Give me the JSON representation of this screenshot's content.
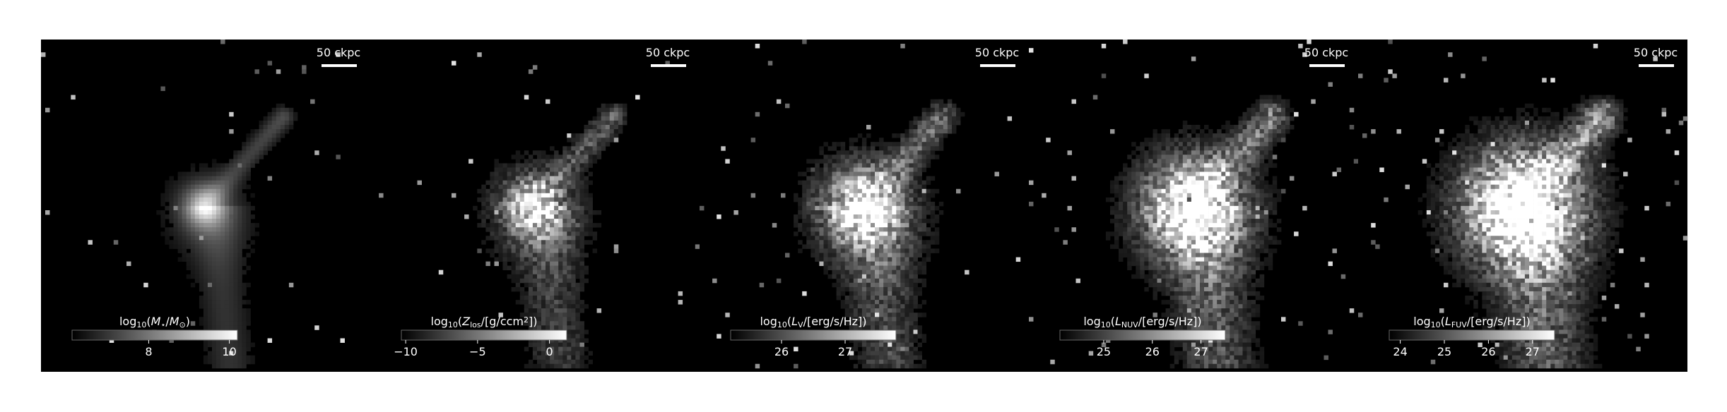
{
  "chart_data": [
    {
      "type": "image",
      "scalebar_label": "50 ckpc",
      "colorbar_label": [
        {
          "text": "log"
        },
        {
          "text": "10",
          "sub": true
        },
        {
          "text": "("
        },
        {
          "text": "M",
          "italic": true
        },
        {
          "text": "⋆",
          "sub": true
        },
        {
          "text": "/"
        },
        {
          "text": "M",
          "italic": true
        },
        {
          "text": "⊙",
          "sub": true
        },
        {
          "text": ")"
        }
      ],
      "clim": [
        6.1,
        10.2
      ],
      "cticks": [
        8,
        10
      ]
    },
    {
      "type": "image",
      "scalebar_label": "50 ckpc",
      "colorbar_label": [
        {
          "text": "log"
        },
        {
          "text": "10",
          "sub": true
        },
        {
          "text": "("
        },
        {
          "text": "Z",
          "italic": true
        },
        {
          "text": "los",
          "sub": true
        },
        {
          "text": "/[g/ccm"
        },
        {
          "text": "2",
          "sup": true
        },
        {
          "text": "])"
        }
      ],
      "clim": [
        -10.3,
        1.2
      ],
      "cticks": [
        {
          "value": -10,
          "label": "−10"
        },
        {
          "value": -5,
          "label": "−5"
        },
        0
      ]
    },
    {
      "type": "image",
      "scalebar_label": "50 ckpc",
      "colorbar_label": [
        {
          "text": "log"
        },
        {
          "text": "10",
          "sub": true
        },
        {
          "text": "("
        },
        {
          "text": "L",
          "italic": true
        },
        {
          "text": "V",
          "sub": true
        },
        {
          "text": "/[erg/s/Hz])"
        }
      ],
      "clim": [
        25.2,
        27.8
      ],
      "cticks": [
        26,
        27
      ]
    },
    {
      "type": "image",
      "scalebar_label": "50 ckpc",
      "colorbar_label": [
        {
          "text": "log"
        },
        {
          "text": "10",
          "sub": true
        },
        {
          "text": "("
        },
        {
          "text": "L",
          "italic": true
        },
        {
          "text": "NUV",
          "sub": true
        },
        {
          "text": "/[erg/s/Hz])"
        }
      ],
      "clim": [
        24.1,
        27.5
      ],
      "cticks": [
        25,
        26,
        27
      ]
    },
    {
      "type": "image",
      "scalebar_label": "50 ckpc",
      "colorbar_label": [
        {
          "text": "log"
        },
        {
          "text": "10",
          "sub": true
        },
        {
          "text": "("
        },
        {
          "text": "L",
          "italic": true
        },
        {
          "text": "FUV",
          "sub": true
        },
        {
          "text": "/[erg/s/Hz])"
        }
      ],
      "clim": [
        23.75,
        27.5
      ],
      "cticks": [
        24,
        25,
        26,
        27
      ]
    }
  ]
}
